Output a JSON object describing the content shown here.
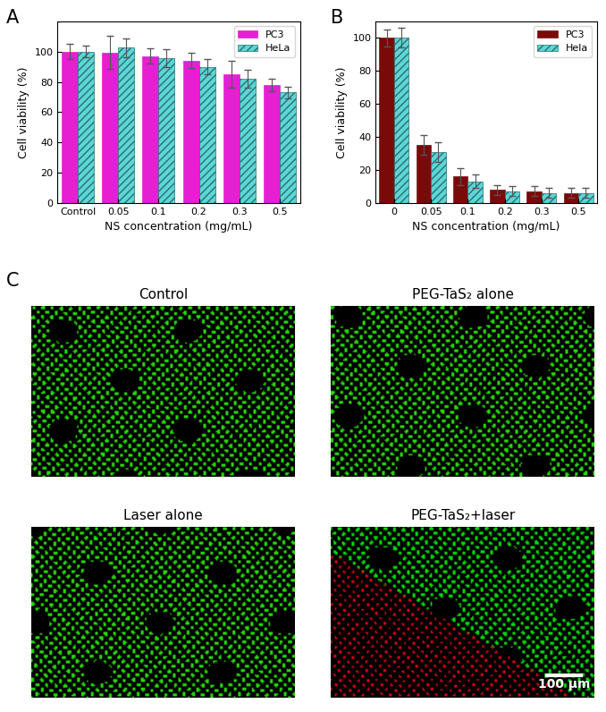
{
  "chart_data": [
    {
      "panel": "A",
      "type": "bar",
      "categories": [
        "Control",
        "0.05",
        "0.1",
        "0.2",
        "0.3",
        "0.5"
      ],
      "x_label": "NS concentration (mg/mL)",
      "y_label": "Cell viability (%)",
      "ylim": [
        0,
        120
      ],
      "yticks": [
        0,
        20,
        40,
        60,
        80,
        100
      ],
      "legend": "upper right",
      "series": [
        {
          "name": "PC3",
          "color": "#e61fd2",
          "values": [
            100,
            99.5,
            97,
            94,
            85,
            78
          ],
          "errors": [
            5,
            11,
            5,
            5,
            9,
            4
          ]
        },
        {
          "name": "HeLa",
          "color": "#5cd6d6",
          "values": [
            100,
            102.5,
            95.5,
            90,
            82,
            73
          ],
          "errors": [
            4,
            6,
            6,
            5,
            6,
            4
          ]
        }
      ]
    },
    {
      "panel": "B",
      "type": "bar",
      "categories": [
        "0",
        "0.05",
        "0.1",
        "0.2",
        "0.3",
        "0.5"
      ],
      "x_label": "NS concentration (mg/mL)",
      "y_label": "Cell viability (%)",
      "ylim": [
        0,
        110
      ],
      "yticks": [
        0,
        20,
        40,
        60,
        80,
        100
      ],
      "legend": "upper right",
      "series": [
        {
          "name": "PC3",
          "color": "#7a0a0a",
          "values": [
            100,
            35,
            16,
            8,
            7,
            6
          ],
          "errors": [
            5,
            6,
            5,
            3,
            3,
            3
          ]
        },
        {
          "name": "Hela",
          "color": "#5cd6d6",
          "values": [
            100,
            31,
            13,
            7,
            6,
            6
          ],
          "errors": [
            6,
            6,
            4,
            3,
            3,
            3
          ]
        }
      ]
    }
  ],
  "images": {
    "panel": "C",
    "titles": [
      "Control",
      "PEG-TaS₂ alone",
      "Laser alone",
      "PEG-TaS₂+laser"
    ],
    "scale_bar": "100 μm"
  }
}
